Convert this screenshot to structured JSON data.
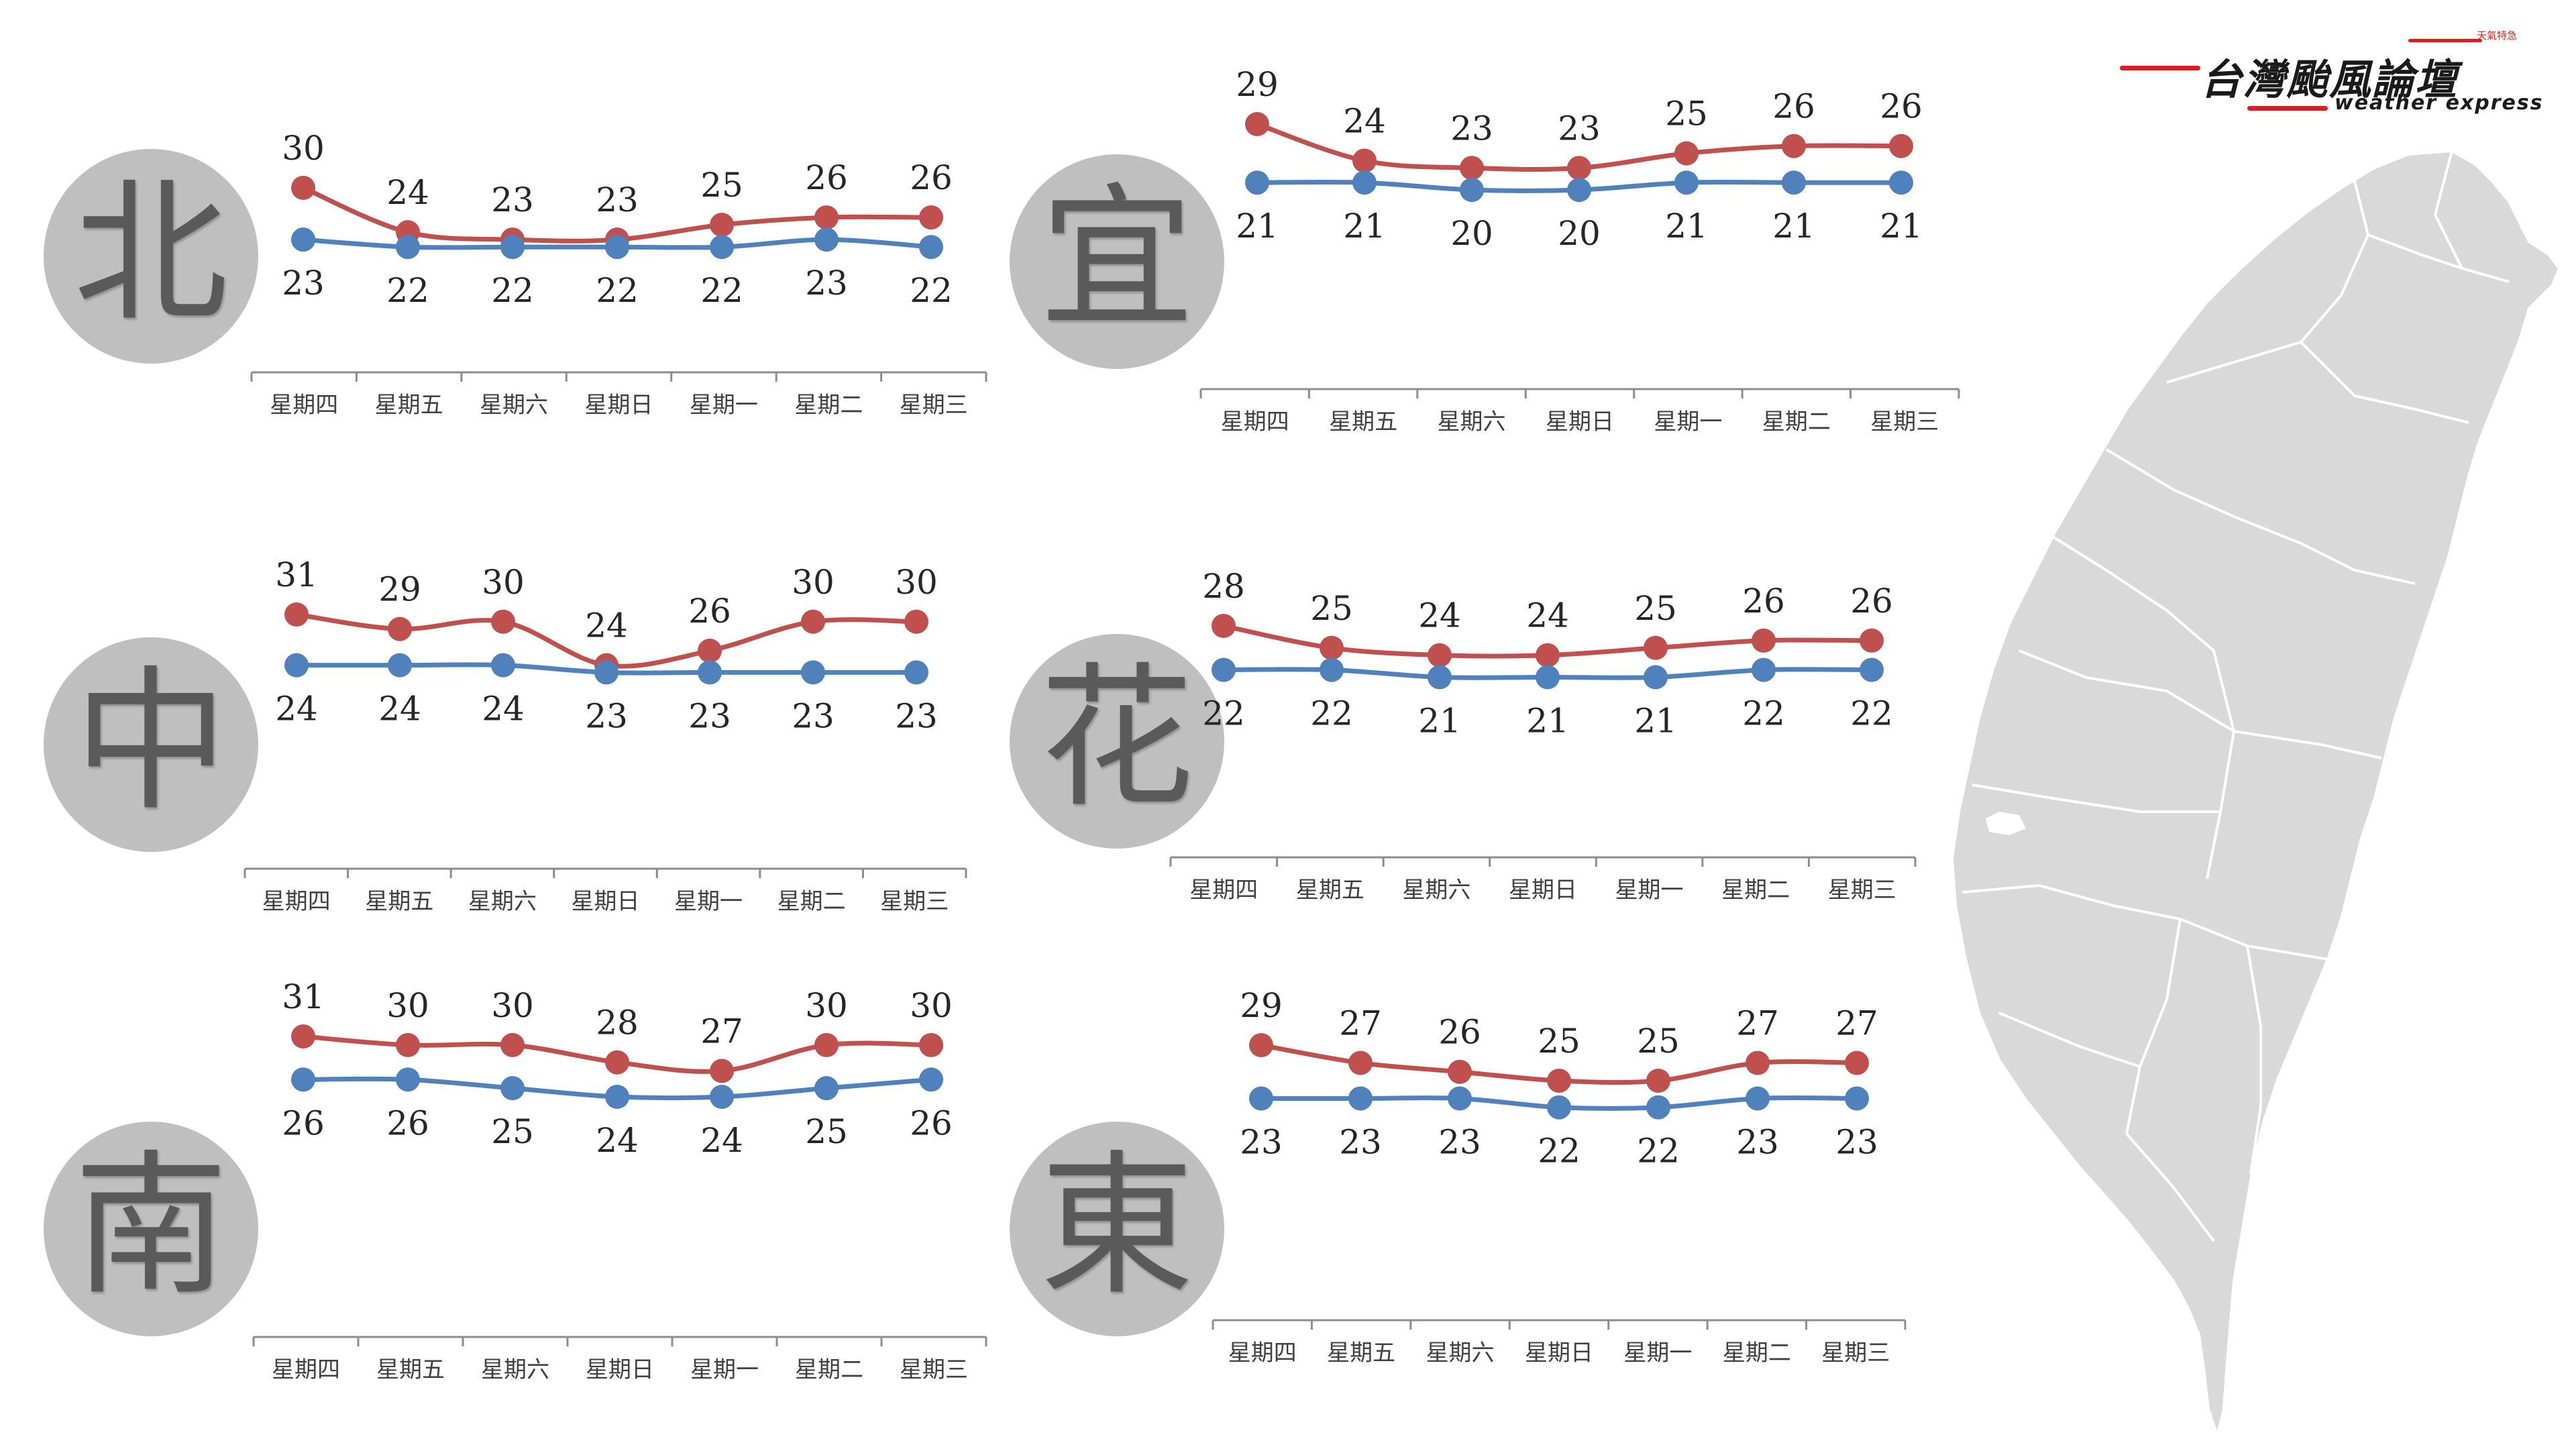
{
  "logo": {
    "title": "台灣颱風論壇",
    "subtitle": "weather express",
    "tag": "天氣特急"
  },
  "colors": {
    "high": "#c0504d",
    "low": "#4f81bd",
    "circle": "#bfbfbf",
    "map_fill": "#d9d9d9",
    "map_border": "#ffffff",
    "axis": "#8c8c8c"
  },
  "regions": [
    {
      "char": "北"
    },
    {
      "char": "宜"
    },
    {
      "char": "中"
    },
    {
      "char": "花"
    },
    {
      "char": "南"
    },
    {
      "char": "東"
    }
  ],
  "chart_data": [
    {
      "type": "line",
      "region": "北",
      "categories": [
        "星期四",
        "星期五",
        "星期六",
        "星期日",
        "星期一",
        "星期二",
        "星期三"
      ],
      "series": [
        {
          "values": [
            30,
            24,
            23,
            23,
            25,
            26,
            26
          ]
        },
        {
          "values": [
            23,
            22,
            22,
            22,
            22,
            23,
            22
          ]
        }
      ]
    },
    {
      "type": "line",
      "region": "宜",
      "categories": [
        "星期四",
        "星期五",
        "星期六",
        "星期日",
        "星期一",
        "星期二",
        "星期三"
      ],
      "series": [
        {
          "values": [
            29,
            24,
            23,
            23,
            25,
            26,
            26
          ]
        },
        {
          "values": [
            21,
            21,
            20,
            20,
            21,
            21,
            21
          ]
        }
      ]
    },
    {
      "type": "line",
      "region": "中",
      "categories": [
        "星期四",
        "星期五",
        "星期六",
        "星期日",
        "星期一",
        "星期二",
        "星期三"
      ],
      "series": [
        {
          "values": [
            31,
            29,
            30,
            24,
            26,
            30,
            30
          ]
        },
        {
          "values": [
            24,
            24,
            24,
            23,
            23,
            23,
            23
          ]
        }
      ]
    },
    {
      "type": "line",
      "region": "花",
      "categories": [
        "星期四",
        "星期五",
        "星期六",
        "星期日",
        "星期一",
        "星期二",
        "星期三"
      ],
      "series": [
        {
          "values": [
            28,
            25,
            24,
            24,
            25,
            26,
            26
          ]
        },
        {
          "values": [
            22,
            22,
            21,
            21,
            21,
            22,
            22
          ]
        }
      ]
    },
    {
      "type": "line",
      "region": "南",
      "categories": [
        "星期四",
        "星期五",
        "星期六",
        "星期日",
        "星期一",
        "星期二",
        "星期三"
      ],
      "series": [
        {
          "values": [
            31,
            30,
            30,
            28,
            27,
            30,
            30
          ]
        },
        {
          "values": [
            26,
            26,
            25,
            24,
            24,
            25,
            26
          ]
        }
      ]
    },
    {
      "type": "line",
      "region": "東",
      "categories": [
        "星期四",
        "星期五",
        "星期六",
        "星期日",
        "星期一",
        "星期二",
        "星期三"
      ],
      "series": [
        {
          "values": [
            29,
            27,
            26,
            25,
            25,
            27,
            27
          ]
        },
        {
          "values": [
            23,
            23,
            23,
            22,
            22,
            23,
            23
          ]
        }
      ]
    }
  ]
}
